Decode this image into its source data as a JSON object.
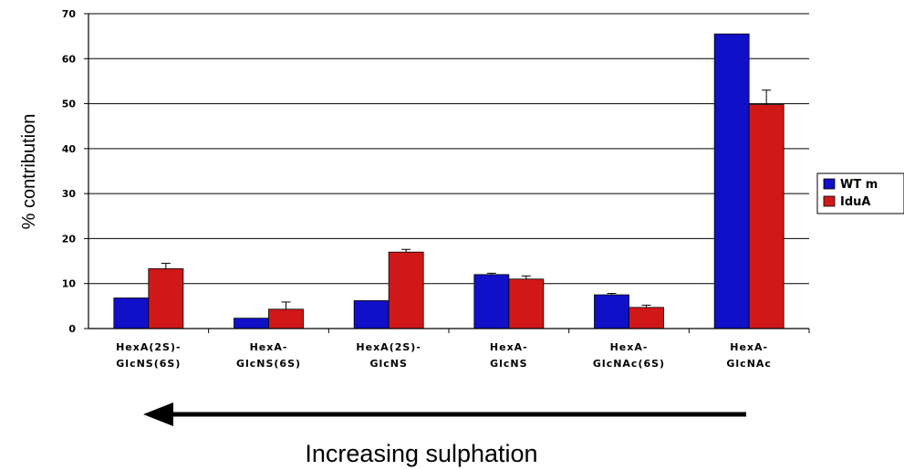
{
  "chart_data": {
    "type": "bar",
    "ylabel": "% contribution",
    "ylim": [
      0,
      70
    ],
    "yticks": [
      0,
      10,
      20,
      30,
      40,
      50,
      60,
      70
    ],
    "grid": true,
    "legend_position": "right",
    "categories": [
      [
        "HexA(2S)-",
        "GlcNS(6S)"
      ],
      [
        "HexA-",
        "GlcNS(6S)"
      ],
      [
        "HexA(2S)-",
        "GlcNS"
      ],
      [
        "HexA-",
        "GlcNS"
      ],
      [
        "HexA-",
        "GlcNAc(6S)"
      ],
      [
        "HexA-",
        "GlcNAc"
      ]
    ],
    "series": [
      {
        "name": "WT m",
        "color": "#1010c8",
        "values": [
          6.8,
          2.3,
          6.2,
          12.0,
          7.5,
          65.5
        ],
        "errors": [
          0,
          0,
          0,
          0.3,
          0.3,
          0
        ]
      },
      {
        "name": "IduA",
        "color": "#d01818",
        "values": [
          13.3,
          4.3,
          17.0,
          11.0,
          4.7,
          49.8
        ],
        "errors": [
          1.2,
          1.6,
          0.6,
          0.7,
          0.5,
          3.2
        ]
      }
    ],
    "annotation": "Increasing sulphation",
    "annotation_arrow_direction": "left"
  }
}
